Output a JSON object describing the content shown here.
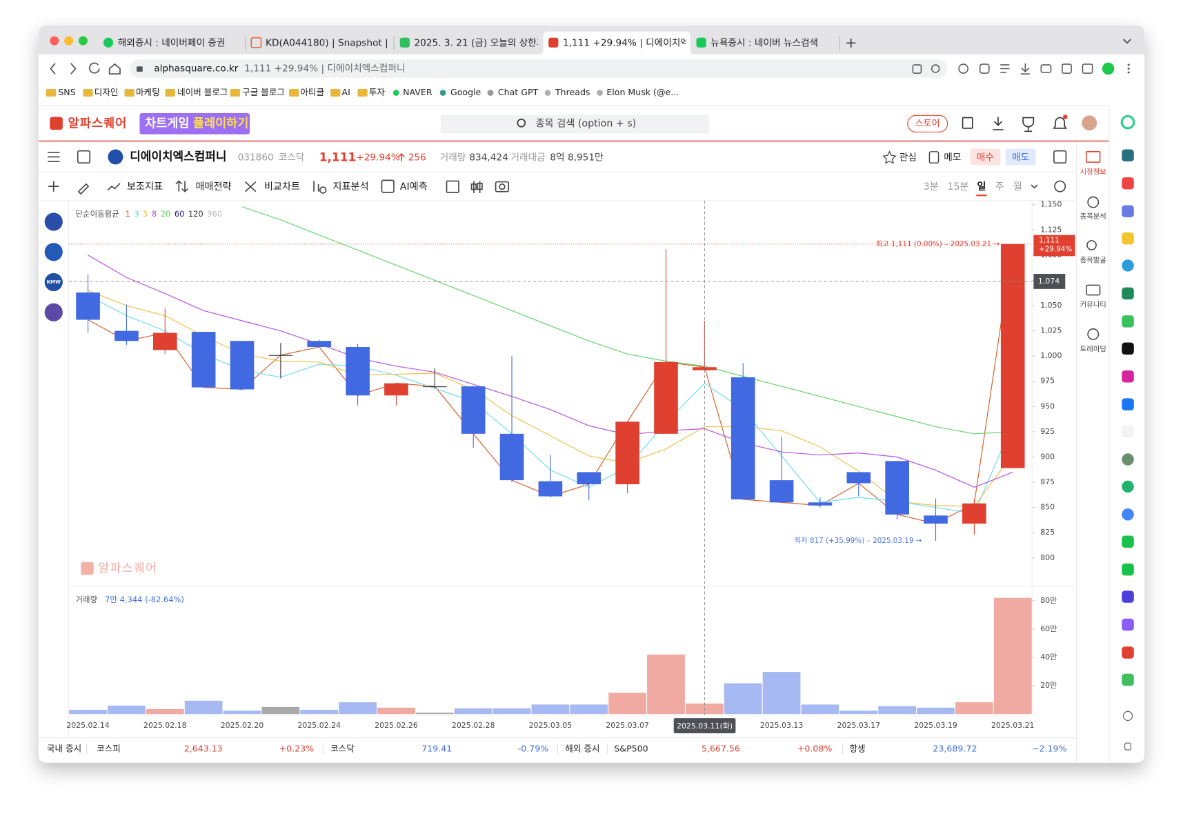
{
  "browser": {
    "tabs": [
      "해외증시 : 네이버페이 증권",
      "KD(A044180) | Snapshot |",
      "2025. 3. 21 (금) 오늘의 상한가",
      "1,111 +29.94% | 디에이치엑스컴퍼니",
      "뉴욕증시 : 네이버 뉴스검색"
    ],
    "url": "alphasquare.co.kr",
    "page_title": "1,111 +29.94% | 디에이치엑스컴퍼니",
    "bookmarks": [
      "SNS",
      "디자인",
      "마케팅",
      "네이버 블로그",
      "구글 블로그",
      "아티클",
      "AI",
      "투자",
      "NAVER",
      "Google",
      "Chat GPT",
      "Threads",
      "Elon Musk (@e..."
    ]
  },
  "header": {
    "logo": "알파스퀘어",
    "promo": "차트게임",
    "promo_highlight": "플레이하기",
    "search": "종목 검색 (option + s)",
    "store": "스토어"
  },
  "stock": {
    "name": "디에이치엑스컴퍼니",
    "code": "031860",
    "market": "코스닥",
    "price": "1,111",
    "change_pct": "+29.94%",
    "change": "256",
    "volume_label": "거래량",
    "volume": "834,424",
    "amount_label": "거래대금",
    "amount": "8억 8,951만",
    "watch": "관심",
    "memo": "메모",
    "buy": "매수",
    "sell": "매도"
  },
  "toolbar": {
    "tools": [
      "보조지표",
      "매매전략",
      "비교차트",
      "지표분석",
      "AI예측"
    ],
    "periods": [
      "3분",
      "15분",
      "일",
      "주",
      "월"
    ]
  },
  "left_icons": {
    "kmw": "KMW"
  },
  "side_menu": [
    "시장정보",
    "종목분석",
    "종목발굴",
    "커뮤니티",
    "트레이딩"
  ],
  "chart_data": {
    "type": "candlestick",
    "watermark": "알파스퀘어",
    "categories": [
      "2025.02.14",
      null,
      "2025.02.18",
      null,
      "2025.02.20",
      null,
      "2025.02.24",
      null,
      "2025.02.26",
      null,
      "2025.02.28",
      null,
      "2025.03.05",
      null,
      "2025.03.07",
      null,
      null,
      null,
      "2025.03.13",
      null,
      "2025.03.17",
      null,
      "2025.03.19",
      null,
      "2025.03.21"
    ],
    "candles": {
      "up_color": "#e0402f",
      "down_color": "#4169e1",
      "flat_color": "#333333",
      "open": [
        1063,
        1025,
        1006,
        1024,
        1015,
        1001,
        1015,
        1009,
        961,
        970,
        970,
        923,
        876,
        885,
        873,
        923,
        986,
        979,
        877,
        855,
        885,
        896,
        842,
        834,
        889
      ],
      "high": [
        1081,
        1051,
        1047,
        1024,
        1015,
        1013,
        1016,
        1012,
        973,
        988,
        970,
        1000,
        902,
        885,
        935,
        1106,
        1035,
        993,
        920,
        860,
        885,
        896,
        859,
        858,
        1111
      ],
      "low": [
        1023,
        1011,
        1002,
        969,
        966,
        978,
        1009,
        951,
        951,
        968,
        909,
        875,
        860,
        857,
        864,
        923,
        986,
        858,
        855,
        850,
        861,
        838,
        817,
        823,
        889
      ],
      "close": [
        1036,
        1015,
        1023,
        969,
        967,
        1001,
        1009,
        961,
        973,
        970,
        923,
        877,
        861,
        873,
        935,
        994,
        989,
        858,
        855,
        852,
        874,
        843,
        834,
        854,
        1111
      ]
    },
    "ma_title": "단순이동평균",
    "ma_series": [
      {
        "name": "1",
        "color": "#d9622b",
        "values": [
          1036,
          1015,
          1023,
          969,
          967,
          1001,
          1009,
          961,
          973,
          970,
          923,
          877,
          861,
          873,
          935,
          994,
          989,
          858,
          855,
          852,
          874,
          843,
          834,
          854,
          1111
        ]
      },
      {
        "name": "3",
        "color": "#6fdcf0",
        "values": [
          1060,
          1040,
          1025,
          1002,
          986,
          979,
          992,
          990,
          981,
          968,
          955,
          923,
          887,
          870,
          890,
          934,
          973,
          947,
          901,
          855,
          860,
          856,
          850,
          844,
          933
        ]
      },
      {
        "name": "5",
        "color": "#f0c24a",
        "values": [
          1065,
          1050,
          1040,
          1020,
          1002,
          995,
          994,
          981,
          982,
          983,
          967,
          941,
          921,
          901,
          894,
          908,
          930,
          930,
          926,
          910,
          886,
          856,
          852,
          851,
          903
        ]
      },
      {
        "name": "8",
        "color": "#b553e6",
        "values": [
          1100,
          1078,
          1062,
          1045,
          1035,
          1025,
          1012,
          998,
          990,
          984,
          972,
          960,
          947,
          931,
          922,
          926,
          928,
          914,
          905,
          902,
          904,
          900,
          887,
          870,
          885
        ]
      },
      {
        "name": "20",
        "color": "#62d666",
        "values": [
          null,
          null,
          null,
          null,
          1148,
          1135,
          1120,
          1105,
          1090,
          1075,
          1060,
          1045,
          1030,
          1015,
          1002,
          995,
          990,
          980,
          970,
          960,
          950,
          940,
          930,
          923,
          925
        ]
      },
      {
        "name": "60",
        "color": "#2a1a8c"
      },
      {
        "name": "120",
        "color": "#333333"
      },
      {
        "name": "360",
        "color": "#bbbbbb"
      }
    ],
    "ylim": [
      772,
      1154
    ],
    "yticks": [
      800,
      825,
      850,
      875,
      900,
      925,
      950,
      975,
      {
        "value": 1000,
        "label": "1,000"
      },
      {
        "value": 1025,
        "label": "1,025"
      },
      {
        "value": 1050,
        "label": "1,050"
      },
      {
        "value": 1075,
        "label": "1,075"
      },
      {
        "value": 1100,
        "label": "1,100"
      },
      {
        "value": 1125,
        "label": "1,125"
      },
      {
        "value": 1150,
        "label": "1,150"
      }
    ],
    "last_price": {
      "value": 1111,
      "label": "1,111",
      "change": "+29.94%",
      "color": "#e0402f"
    },
    "crosshair": {
      "value": 1074,
      "label": "1,074",
      "date": "2025.03.11(화)"
    },
    "annotations": [
      {
        "value": 1111,
        "text": "최고 1,111 (0.00%) – 2025.03.21 →",
        "color": "#e0402f"
      },
      {
        "value": 817,
        "text": "최저 817 (+35.99%) – 2025.03.19 →",
        "color": "#4a78e0"
      }
    ],
    "volume": {
      "title": "거래량",
      "current": "7만 4,344 (-82.64%)",
      "up_color": "#f0aaa1",
      "down_color": "#a6b9f2",
      "flat_color": "#a9a9a9",
      "values": [
        3,
        6,
        3.5,
        9.4,
        2.4,
        5,
        3,
        8.3,
        4.5,
        1,
        4,
        4,
        6.7,
        6.7,
        15,
        42,
        7.4344,
        21.7,
        29.7,
        6.7,
        2.4,
        5.6,
        4.5,
        8.3,
        82
      ],
      "ylim": [
        0,
        86
      ],
      "yticks": [
        {
          "value": 20,
          "label": "20만"
        },
        {
          "value": 40,
          "label": "40만"
        },
        {
          "value": 60,
          "label": "60만"
        },
        {
          "value": 80,
          "label": "80만"
        }
      ]
    }
  },
  "ticker": {
    "domestic": "국내 증시",
    "overseas": "해외 증시",
    "indices": [
      {
        "name": "코스피",
        "value": "2,643.13",
        "change": "+0.23%"
      },
      {
        "name": "코스닥",
        "value": "719.41",
        "change": "-0.79%"
      },
      {
        "name": "S&P500",
        "value": "5,667.56",
        "change": "+0.08%"
      },
      {
        "name": "항셍",
        "value": "23,689.72",
        "change": "−2.19%"
      }
    ]
  }
}
